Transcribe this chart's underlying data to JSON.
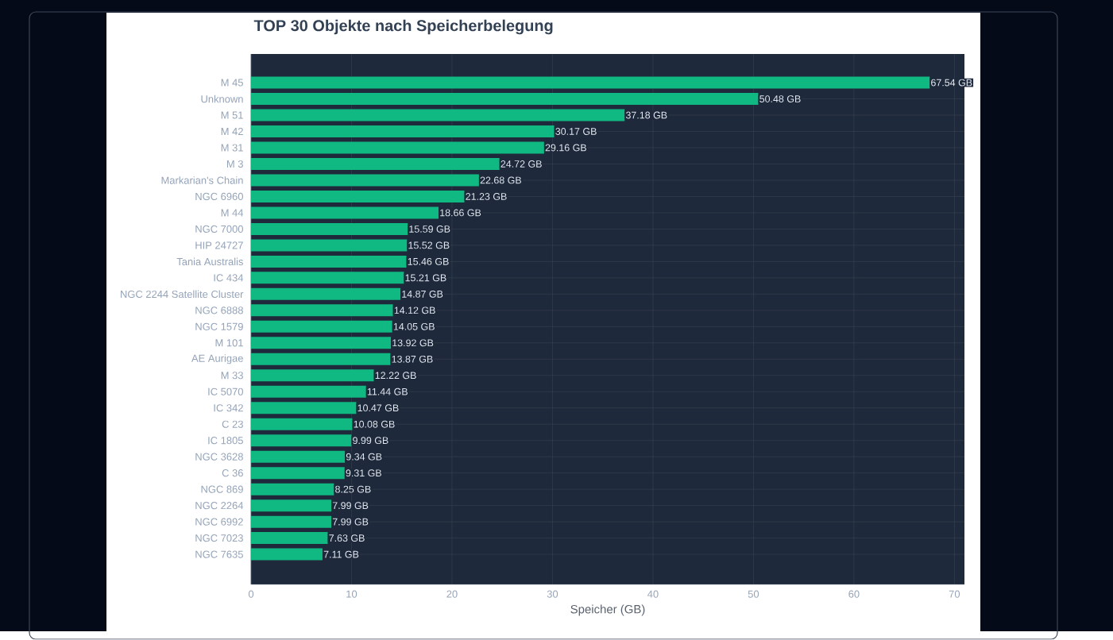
{
  "chart_data": {
    "type": "bar",
    "orientation": "horizontal",
    "title": "TOP 30 Objekte nach Speicherbelegung",
    "xlabel": "Speicher (GB)",
    "categories": [
      "M 45",
      "Unknown",
      "M 51",
      "M 42",
      "M 31",
      "M 3",
      "Markarian's Chain",
      "NGC 6960",
      "M 44",
      "NGC 7000",
      "HIP 24727",
      "Tania Australis",
      "IC 434",
      "NGC 2244 Satellite Cluster",
      "NGC 6888",
      "NGC 1579",
      "M 101",
      "AE Aurigae",
      "M 33",
      "IC 5070",
      "IC 342",
      "C 23",
      "IC 1805",
      "NGC 3628",
      "C 36",
      "NGC 869",
      "NGC 2264",
      "NGC 6992",
      "NGC 7023",
      "NGC 7635"
    ],
    "values": [
      67.54,
      50.48,
      37.18,
      30.17,
      29.16,
      24.72,
      22.68,
      21.23,
      18.66,
      15.59,
      15.52,
      15.46,
      15.21,
      14.87,
      14.12,
      14.05,
      13.92,
      13.87,
      12.22,
      11.44,
      10.47,
      10.08,
      9.99,
      9.34,
      9.31,
      8.25,
      7.99,
      7.99,
      7.63,
      7.11
    ],
    "value_labels": [
      "67.54 GB",
      "50.48 GB",
      "37.18 GB",
      "30.17 GB",
      "29.16 GB",
      "24.72 GB",
      "22.68 GB",
      "21.23 GB",
      "18.66 GB",
      "15.59 GB",
      "15.52 GB",
      "15.46 GB",
      "15.21 GB",
      "14.87 GB",
      "14.12 GB",
      "14.05 GB",
      "13.92 GB",
      "13.87 GB",
      "12.22 GB",
      "11.44 GB",
      "10.47 GB",
      "10.08 GB",
      "9.99 GB",
      "9.34 GB",
      "9.31 GB",
      "8.25 GB",
      "7.99 GB",
      "7.99 GB",
      "7.63 GB",
      "7.11 GB"
    ],
    "color": "#10b981",
    "xlim": [
      0,
      71
    ],
    "xticks": [
      0,
      10,
      20,
      30,
      40,
      50,
      60,
      70
    ],
    "grid": true
  }
}
